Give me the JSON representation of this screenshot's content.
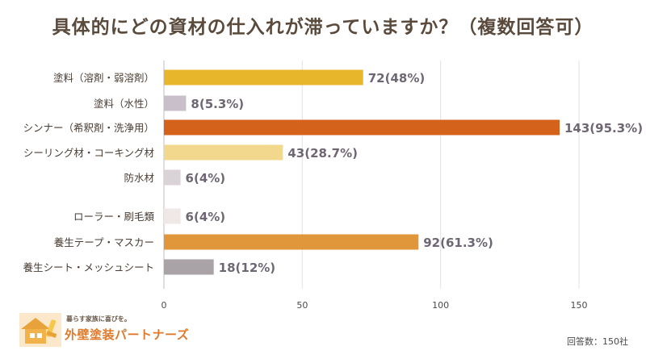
{
  "title": "具体的にどの資材の仕入れが滞っていますか？（複数回答可）",
  "chart_data": {
    "type": "bar",
    "orientation": "horizontal",
    "categories": [
      "塗料（溶剤・弱溶剤）",
      "塗料（水性）",
      "シンナー（希釈剤・洗浄用）",
      "シーリング材・コーキング材",
      "防水材",
      "ローラー・刷毛類",
      "養生テープ・マスカー",
      "養生シート・メッシュシート"
    ],
    "values": [
      72,
      8,
      143,
      43,
      6,
      6,
      92,
      18
    ],
    "value_labels": [
      "72(48%)",
      "8(5.3%)",
      "143(95.3%)",
      "43(28.7%)",
      "6(4%)",
      "6(4%)",
      "92(61.3%)",
      "18(12%)"
    ],
    "colors": [
      "#e8b62a",
      "#c9bfcb",
      "#d4621a",
      "#f2d88c",
      "#d9d2d6",
      "#efe8e6",
      "#e0963a",
      "#a9a3a7"
    ],
    "xlim": [
      0,
      175
    ],
    "xticks": [
      0,
      50,
      100,
      150
    ],
    "grid": true
  },
  "logo": {
    "tagline": "暮らす家族に喜びを。",
    "name": "外壁塗装パートナーズ"
  },
  "note": "回答数：150社"
}
